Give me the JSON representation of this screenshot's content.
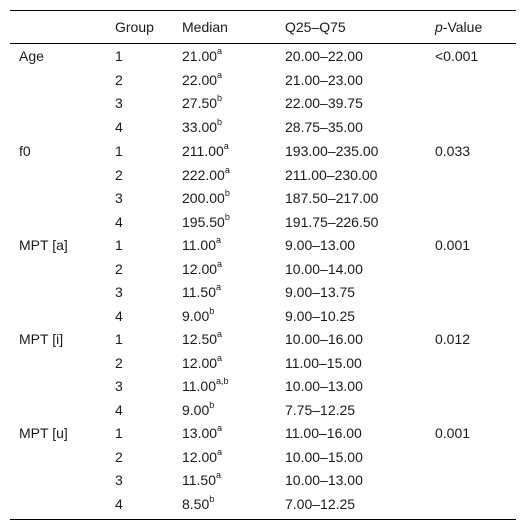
{
  "header": {
    "variable": "",
    "group": "Group",
    "median": "Median",
    "iqr": "Q25–Q75",
    "p_prefix": "p",
    "p_suffix": "-Value"
  },
  "sections": [
    {
      "label": "Age",
      "p": "<0.001",
      "rows": [
        {
          "group": "1",
          "median": "21.00",
          "sup": "a",
          "iqr": "20.00–22.00"
        },
        {
          "group": "2",
          "median": "22.00",
          "sup": "a",
          "iqr": "21.00–23.00"
        },
        {
          "group": "3",
          "median": "27.50",
          "sup": "b",
          "iqr": "22.00–39.75"
        },
        {
          "group": "4",
          "median": "33.00",
          "sup": "b",
          "iqr": "28.75–35.00"
        }
      ]
    },
    {
      "label": "f0",
      "p": "0.033",
      "rows": [
        {
          "group": "1",
          "median": "211.00",
          "sup": "a",
          "iqr": "193.00–235.00"
        },
        {
          "group": "2",
          "median": "222.00",
          "sup": "a",
          "iqr": "211.00–230.00"
        },
        {
          "group": "3",
          "median": "200.00",
          "sup": "b",
          "iqr": "187.50–217.00"
        },
        {
          "group": "4",
          "median": "195.50",
          "sup": "b",
          "iqr": "191.75–226.50"
        }
      ]
    },
    {
      "label": "MPT [a]",
      "p": "0.001",
      "rows": [
        {
          "group": "1",
          "median": "11.00",
          "sup": "a",
          "iqr": "9.00–13.00"
        },
        {
          "group": "2",
          "median": "12.00",
          "sup": "a",
          "iqr": "10.00–14.00"
        },
        {
          "group": "3",
          "median": "11.50",
          "sup": "a",
          "iqr": "9.00–13.75"
        },
        {
          "group": "4",
          "median": "9.00",
          "sup": "b",
          "iqr": "9.00–10.25"
        }
      ]
    },
    {
      "label": "MPT [i]",
      "p": "0.012",
      "rows": [
        {
          "group": "1",
          "median": "12.50",
          "sup": "a",
          "iqr": "10.00–16.00"
        },
        {
          "group": "2",
          "median": "12.00",
          "sup": "a",
          "iqr": "11.00–15.00"
        },
        {
          "group": "3",
          "median": "11.00",
          "sup": "a,b",
          "iqr": "10.00–13.00"
        },
        {
          "group": "4",
          "median": "9.00",
          "sup": "b",
          "iqr": "7.75–12.25"
        }
      ]
    },
    {
      "label": "MPT [u]",
      "p": "0.001",
      "rows": [
        {
          "group": "1",
          "median": "13.00",
          "sup": "a",
          "iqr": "11.00–16.00"
        },
        {
          "group": "2",
          "median": "12.00",
          "sup": "a",
          "iqr": "10.00–15.00"
        },
        {
          "group": "3",
          "median": "11.50",
          "sup": "a",
          "iqr": "10.00–13.00"
        },
        {
          "group": "4",
          "median": "8.50",
          "sup": "b",
          "iqr": "7.00–12.25"
        }
      ]
    }
  ]
}
